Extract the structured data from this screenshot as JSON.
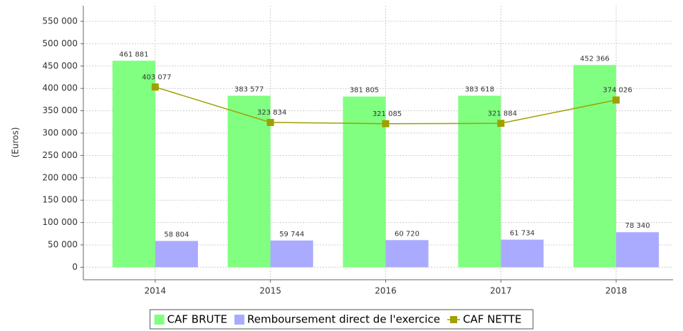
{
  "chart_data": {
    "type": "bar",
    "y_label": "(Euros)",
    "categories": [
      "2014",
      "2015",
      "2016",
      "2017",
      "2018"
    ],
    "series": [
      {
        "name": "CAF BRUTE",
        "type": "bar",
        "color": "#80ff80",
        "values": [
          461881,
          383577,
          381805,
          383618,
          452366
        ],
        "value_labels": [
          "461 881",
          "383 577",
          "381 805",
          "383 618",
          "452 366"
        ]
      },
      {
        "name": "Remboursement direct de l'exercice",
        "type": "bar",
        "color": "#aaaaff",
        "values": [
          58804,
          59744,
          60720,
          61734,
          78340
        ],
        "value_labels": [
          "58 804",
          "59 744",
          "60 720",
          "61 734",
          "78 340"
        ]
      },
      {
        "name": "CAF NETTE",
        "type": "line",
        "color": "#a0a000",
        "values": [
          403077,
          323834,
          321085,
          321884,
          374026
        ],
        "value_labels": [
          "403 077",
          "323 834",
          "321 085",
          "321 884",
          "374 026"
        ]
      }
    ],
    "ylim": [
      -28000,
      585000
    ],
    "yticks": [
      {
        "value": 0,
        "label": "0"
      },
      {
        "value": 50000,
        "label": "50 000"
      },
      {
        "value": 100000,
        "label": "100 000"
      },
      {
        "value": 150000,
        "label": "150 000"
      },
      {
        "value": 200000,
        "label": "200 000"
      },
      {
        "value": 250000,
        "label": "250 000"
      },
      {
        "value": 300000,
        "label": "300 000"
      },
      {
        "value": 350000,
        "label": "350 000"
      },
      {
        "value": 400000,
        "label": "400 000"
      },
      {
        "value": 450000,
        "label": "450 000"
      },
      {
        "value": 500000,
        "label": "500 000"
      },
      {
        "value": 550000,
        "label": "550 000"
      }
    ],
    "grid": true
  }
}
